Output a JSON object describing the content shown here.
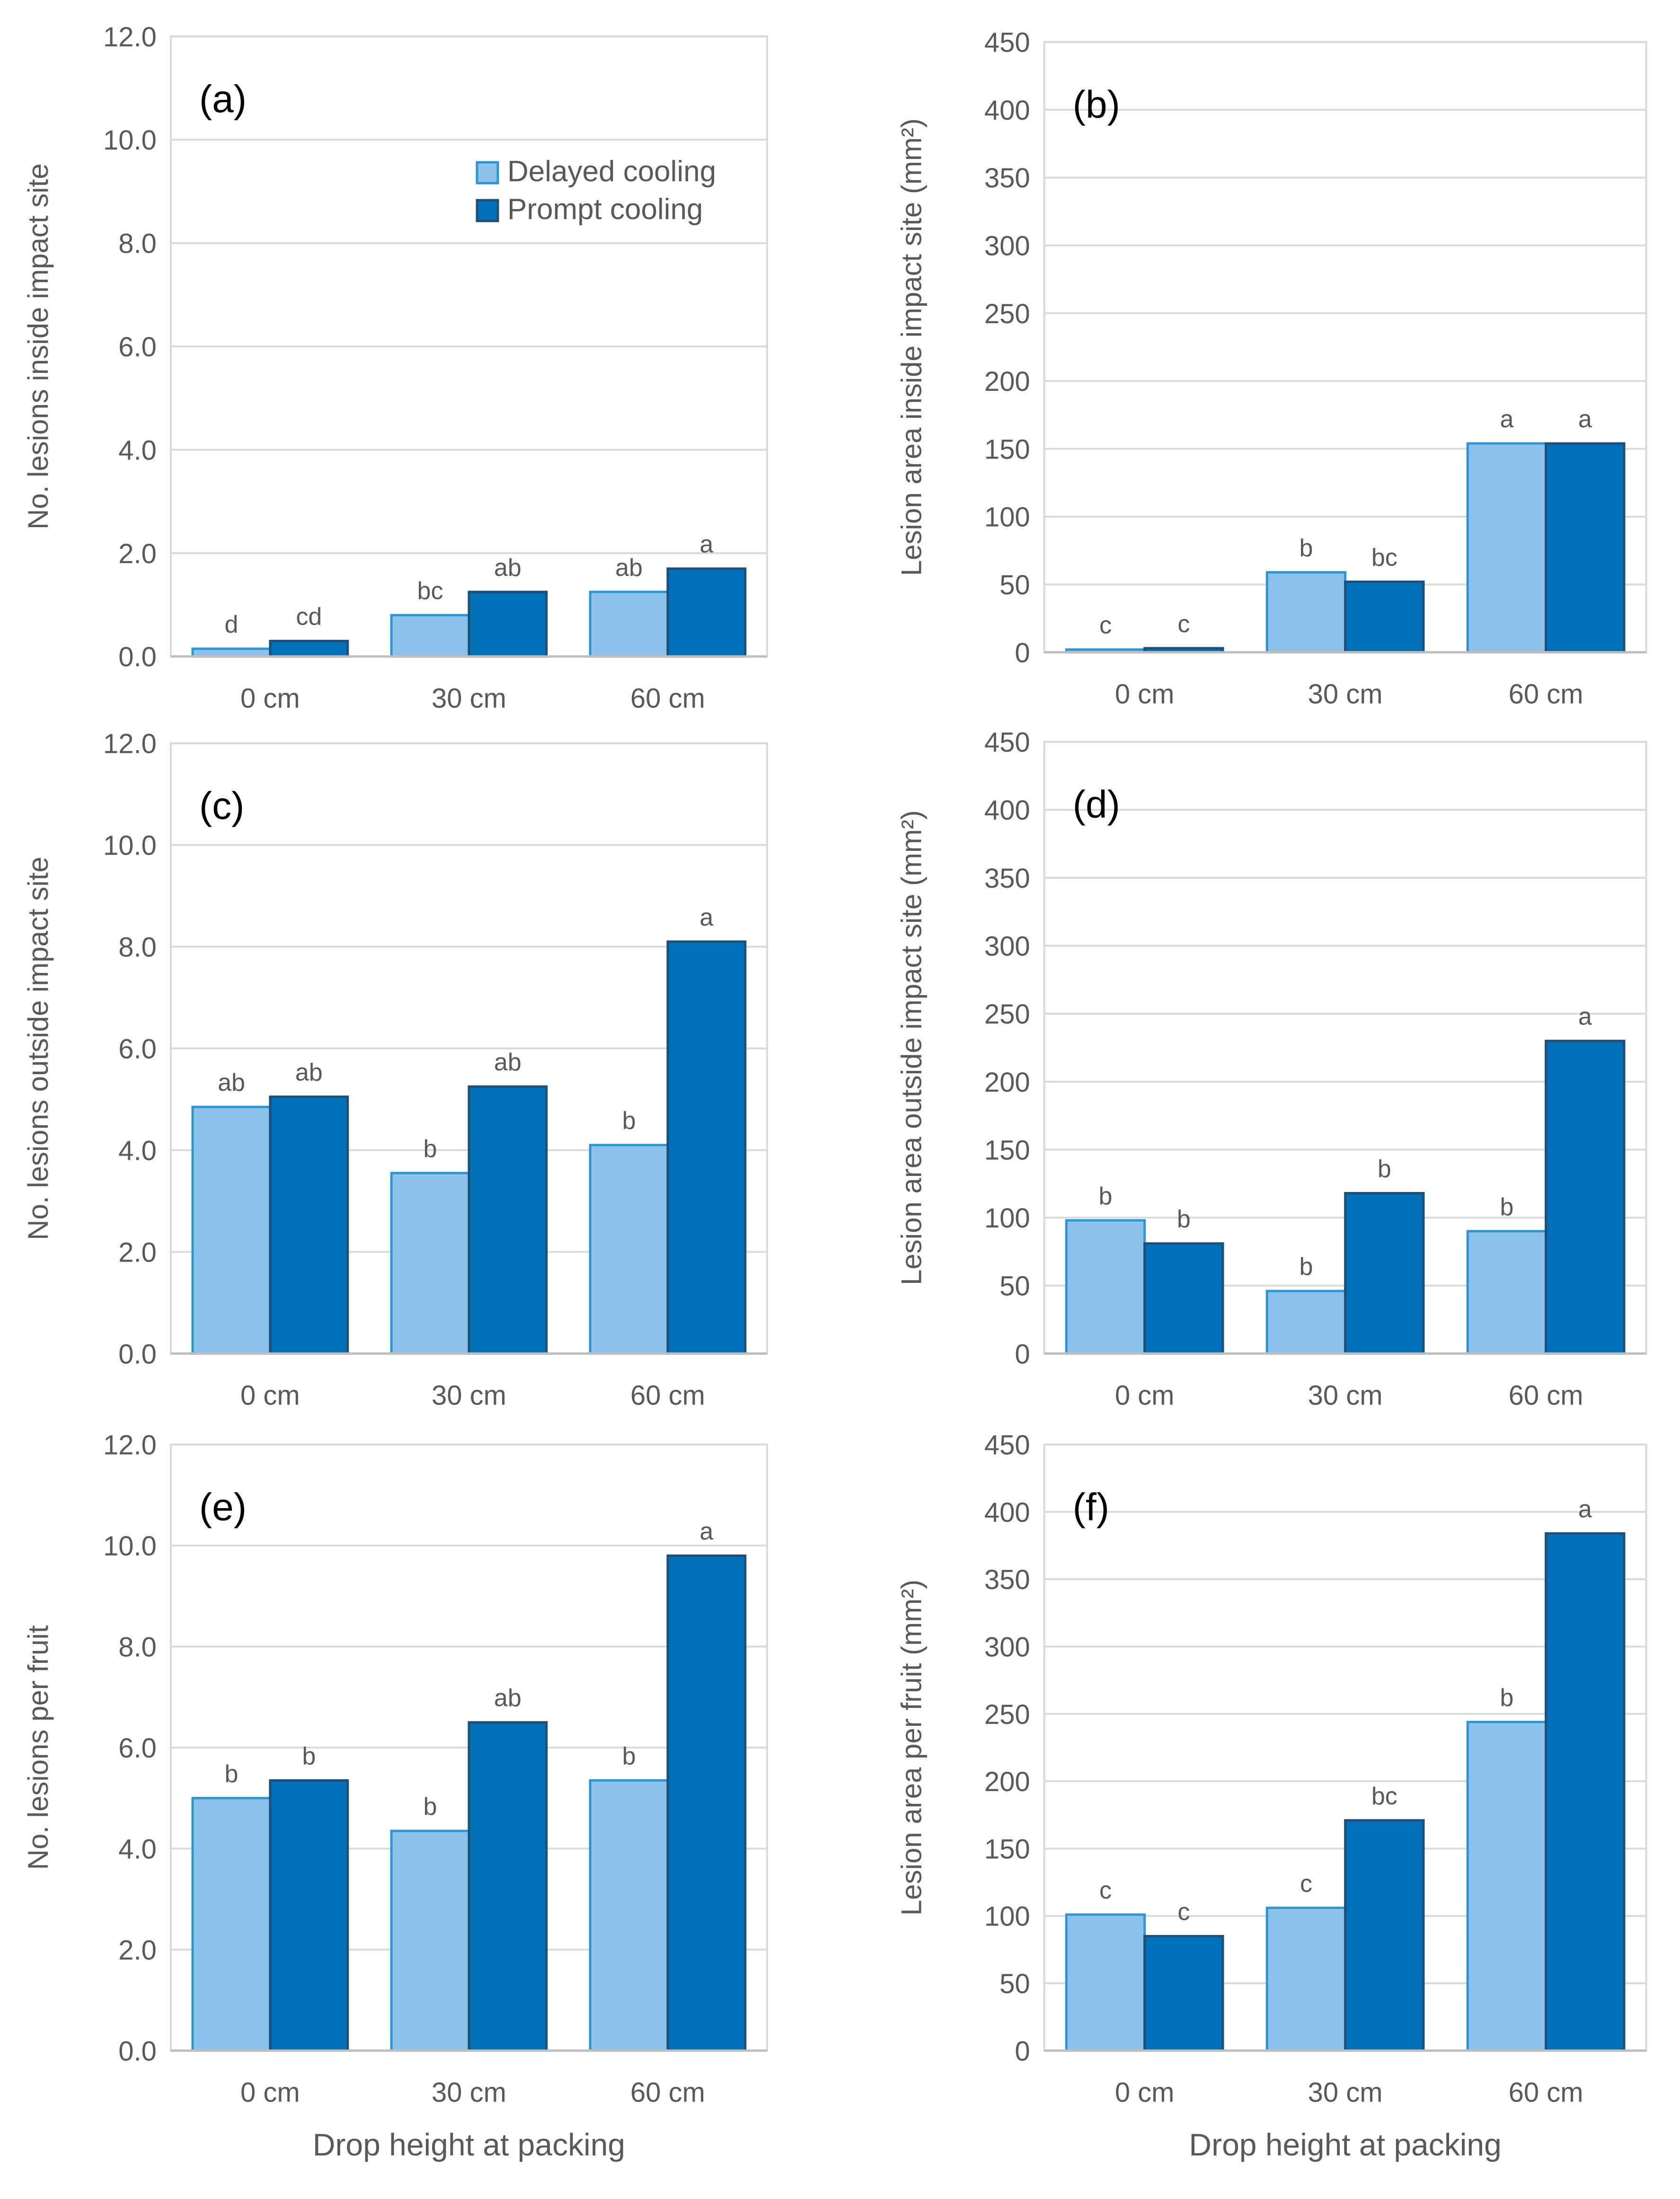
{
  "colors": {
    "delayed_fill": "#8DC3EA",
    "delayed_stroke": "#2E95D4",
    "prompt_fill": "#0070B8",
    "prompt_stroke": "#1F4E79",
    "grid": "#D9D9D9",
    "axis_text": "#595959",
    "panel_label": "#000000"
  },
  "shared": {
    "categories": [
      "0 cm",
      "30 cm",
      "60 cm"
    ],
    "series_names": [
      "Delayed cooling",
      "Prompt cooling"
    ],
    "xlabel": "Drop height at packing"
  },
  "chart_data": [
    {
      "type": "bar",
      "panel": "(a)",
      "ylabel": "No. lesions inside impact site",
      "ylim": [
        0,
        12
      ],
      "yticks": [
        "0.0",
        "2.0",
        "4.0",
        "6.0",
        "8.0",
        "10.0",
        "12.0"
      ],
      "categories": [
        "0 cm",
        "30 cm",
        "60 cm"
      ],
      "series": [
        {
          "name": "Delayed cooling",
          "values": [
            0.15,
            0.8,
            1.25
          ],
          "labels": [
            "d",
            "bc",
            "ab"
          ]
        },
        {
          "name": "Prompt cooling",
          "values": [
            0.3,
            1.25,
            1.7
          ],
          "labels": [
            "cd",
            "ab",
            "a"
          ]
        }
      ],
      "legend": "top-right"
    },
    {
      "type": "bar",
      "panel": "(b)",
      "ylabel": "Lesion area inside impact site (mm²)",
      "ylim": [
        0,
        450
      ],
      "yticks": [
        "0",
        "50",
        "100",
        "150",
        "200",
        "250",
        "300",
        "350",
        "400",
        "450"
      ],
      "categories": [
        "0 cm",
        "30 cm",
        "60 cm"
      ],
      "series": [
        {
          "name": "Delayed cooling",
          "values": [
            2,
            59,
            154
          ],
          "labels": [
            "c",
            "b",
            "a"
          ]
        },
        {
          "name": "Prompt cooling",
          "values": [
            3,
            52,
            154
          ],
          "labels": [
            "c",
            "bc",
            "a"
          ]
        }
      ]
    },
    {
      "type": "bar",
      "panel": "(c)",
      "ylabel": "No. lesions outside impact site",
      "ylim": [
        0,
        12
      ],
      "yticks": [
        "0.0",
        "2.0",
        "4.0",
        "6.0",
        "8.0",
        "10.0",
        "12.0"
      ],
      "categories": [
        "0 cm",
        "30 cm",
        "60 cm"
      ],
      "series": [
        {
          "name": "Delayed cooling",
          "values": [
            4.85,
            3.55,
            4.1
          ],
          "labels": [
            "ab",
            "b",
            "b"
          ]
        },
        {
          "name": "Prompt cooling",
          "values": [
            5.05,
            5.25,
            8.1
          ],
          "labels": [
            "ab",
            "ab",
            "a"
          ]
        }
      ]
    },
    {
      "type": "bar",
      "panel": "(d)",
      "ylabel": "Lesion area outside impact site (mm²)",
      "ylim": [
        0,
        450
      ],
      "yticks": [
        "0",
        "50",
        "100",
        "150",
        "200",
        "250",
        "300",
        "350",
        "400",
        "450"
      ],
      "categories": [
        "0 cm",
        "30 cm",
        "60 cm"
      ],
      "series": [
        {
          "name": "Delayed cooling",
          "values": [
            98,
            46,
            90
          ],
          "labels": [
            "b",
            "b",
            "b"
          ]
        },
        {
          "name": "Prompt cooling",
          "values": [
            81,
            118,
            230
          ],
          "labels": [
            "b",
            "b",
            "a"
          ]
        }
      ]
    },
    {
      "type": "bar",
      "panel": "(e)",
      "ylabel": "No. lesions per fruit",
      "ylim": [
        0,
        12
      ],
      "yticks": [
        "0.0",
        "2.0",
        "4.0",
        "6.0",
        "8.0",
        "10.0",
        "12.0"
      ],
      "categories": [
        "0 cm",
        "30 cm",
        "60 cm"
      ],
      "series": [
        {
          "name": "Delayed cooling",
          "values": [
            5.0,
            4.35,
            5.35
          ],
          "labels": [
            "b",
            "b",
            "b"
          ]
        },
        {
          "name": "Prompt cooling",
          "values": [
            5.35,
            6.5,
            9.8
          ],
          "labels": [
            "b",
            "ab",
            "a"
          ]
        }
      ],
      "xlabel": "Drop height at packing"
    },
    {
      "type": "bar",
      "panel": "(f)",
      "ylabel": "Lesion area per fruit (mm²)",
      "ylim": [
        0,
        450
      ],
      "yticks": [
        "0",
        "50",
        "100",
        "150",
        "200",
        "250",
        "300",
        "350",
        "400",
        "450"
      ],
      "categories": [
        "0 cm",
        "30 cm",
        "60 cm"
      ],
      "series": [
        {
          "name": "Delayed cooling",
          "values": [
            101,
            106,
            244
          ],
          "labels": [
            "c",
            "c",
            "b"
          ]
        },
        {
          "name": "Prompt cooling",
          "values": [
            85,
            171,
            384
          ],
          "labels": [
            "c",
            "bc",
            "a"
          ]
        }
      ],
      "xlabel": "Drop height at packing"
    }
  ]
}
